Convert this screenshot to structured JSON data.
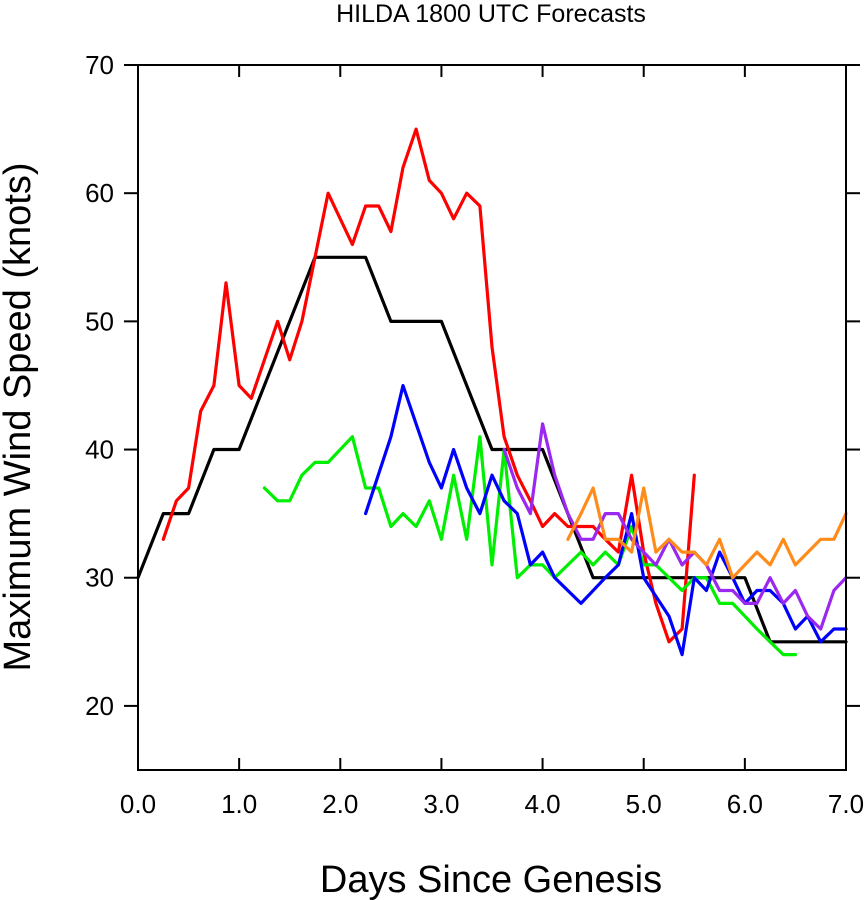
{
  "chart_data": {
    "type": "line",
    "title": "HILDA 1800 UTC Forecasts",
    "xlabel": "Days Since Genesis",
    "ylabel": "Maximum Wind Speed (knots)",
    "xlim": [
      0,
      7
    ],
    "ylim": [
      15,
      70
    ],
    "xticks": [
      0,
      1,
      2,
      3,
      4,
      5,
      6,
      7
    ],
    "xtick_labels": [
      "0.0",
      "1.0",
      "2.0",
      "3.0",
      "4.0",
      "5.0",
      "6.0",
      "7.0"
    ],
    "yticks": [
      20,
      30,
      40,
      50,
      60,
      70
    ],
    "ytick_labels": [
      "20",
      "30",
      "40",
      "50",
      "60",
      "70"
    ],
    "grid": false,
    "series": [
      {
        "color": "#000000",
        "points": [
          [
            0.0,
            30
          ],
          [
            0.25,
            35
          ],
          [
            0.5,
            35
          ],
          [
            0.75,
            40
          ],
          [
            1.0,
            40
          ],
          [
            1.75,
            55
          ],
          [
            2.25,
            55
          ],
          [
            2.5,
            50
          ],
          [
            3.0,
            50
          ],
          [
            3.5,
            40
          ],
          [
            4.0,
            40
          ],
          [
            4.5,
            30
          ],
          [
            6.0,
            30
          ],
          [
            6.25,
            25
          ],
          [
            7.0,
            25
          ]
        ]
      },
      {
        "color": "#ff0000",
        "points": [
          [
            0.25,
            33
          ],
          [
            0.38,
            36
          ],
          [
            0.5,
            37
          ],
          [
            0.62,
            43
          ],
          [
            0.75,
            45
          ],
          [
            0.87,
            53
          ],
          [
            1.0,
            45
          ],
          [
            1.12,
            44
          ],
          [
            1.38,
            50
          ],
          [
            1.5,
            47
          ],
          [
            1.62,
            50
          ],
          [
            1.75,
            55
          ],
          [
            1.88,
            60
          ],
          [
            2.12,
            56
          ],
          [
            2.25,
            59
          ],
          [
            2.38,
            59
          ],
          [
            2.5,
            57
          ],
          [
            2.62,
            62
          ],
          [
            2.75,
            65
          ],
          [
            2.88,
            61
          ],
          [
            3.0,
            60
          ],
          [
            3.12,
            58
          ],
          [
            3.25,
            60
          ],
          [
            3.38,
            59
          ],
          [
            3.5,
            48
          ],
          [
            3.62,
            41
          ],
          [
            3.75,
            38
          ],
          [
            3.88,
            36
          ],
          [
            4.0,
            34
          ],
          [
            4.12,
            35
          ],
          [
            4.25,
            34
          ],
          [
            4.5,
            34
          ],
          [
            4.62,
            33
          ],
          [
            4.75,
            32
          ],
          [
            4.88,
            38
          ],
          [
            5.0,
            32
          ],
          [
            5.12,
            28
          ],
          [
            5.25,
            25
          ],
          [
            5.38,
            26
          ],
          [
            5.5,
            38
          ]
        ]
      },
      {
        "color": "#00ee00",
        "points": [
          [
            1.25,
            37
          ],
          [
            1.38,
            36
          ],
          [
            1.5,
            36
          ],
          [
            1.62,
            38
          ],
          [
            1.75,
            39
          ],
          [
            1.88,
            39
          ],
          [
            2.12,
            41
          ],
          [
            2.25,
            37
          ],
          [
            2.38,
            37
          ],
          [
            2.5,
            34
          ],
          [
            2.62,
            35
          ],
          [
            2.75,
            34
          ],
          [
            2.88,
            36
          ],
          [
            3.0,
            33
          ],
          [
            3.12,
            38
          ],
          [
            3.25,
            33
          ],
          [
            3.38,
            41
          ],
          [
            3.5,
            31
          ],
          [
            3.62,
            40
          ],
          [
            3.75,
            30
          ],
          [
            3.88,
            31
          ],
          [
            4.0,
            31
          ],
          [
            4.12,
            30
          ],
          [
            4.38,
            32
          ],
          [
            4.5,
            31
          ],
          [
            4.62,
            32
          ],
          [
            4.75,
            31
          ],
          [
            4.88,
            34
          ],
          [
            5.0,
            31
          ],
          [
            5.12,
            31
          ],
          [
            5.38,
            29
          ],
          [
            5.5,
            30
          ],
          [
            5.62,
            30
          ],
          [
            5.75,
            28
          ],
          [
            5.88,
            28
          ],
          [
            6.0,
            27
          ],
          [
            6.12,
            26
          ],
          [
            6.25,
            25
          ],
          [
            6.38,
            24
          ],
          [
            6.5,
            24
          ]
        ]
      },
      {
        "color": "#0000ff",
        "points": [
          [
            2.25,
            35
          ],
          [
            2.5,
            41
          ],
          [
            2.62,
            45
          ],
          [
            2.75,
            42
          ],
          [
            2.88,
            39
          ],
          [
            3.0,
            37
          ],
          [
            3.12,
            40
          ],
          [
            3.25,
            37
          ],
          [
            3.38,
            35
          ],
          [
            3.5,
            38
          ],
          [
            3.62,
            36
          ],
          [
            3.75,
            35
          ],
          [
            3.88,
            31
          ],
          [
            4.0,
            32
          ],
          [
            4.12,
            30
          ],
          [
            4.38,
            28
          ],
          [
            4.62,
            30
          ],
          [
            4.75,
            31
          ],
          [
            4.88,
            35
          ],
          [
            5.0,
            30
          ],
          [
            5.25,
            27
          ],
          [
            5.38,
            24
          ],
          [
            5.5,
            30
          ],
          [
            5.62,
            29
          ],
          [
            5.75,
            32
          ],
          [
            5.88,
            30
          ],
          [
            6.0,
            28
          ],
          [
            6.12,
            29
          ],
          [
            6.25,
            29
          ],
          [
            6.38,
            28
          ],
          [
            6.5,
            26
          ],
          [
            6.62,
            27
          ],
          [
            6.75,
            25
          ],
          [
            6.88,
            26
          ],
          [
            7.0,
            26
          ]
        ]
      },
      {
        "color": "#9a28ee",
        "points": [
          [
            3.62,
            40
          ],
          [
            3.75,
            37
          ],
          [
            3.88,
            35
          ],
          [
            4.0,
            42
          ],
          [
            4.12,
            38
          ],
          [
            4.25,
            35
          ],
          [
            4.38,
            33
          ],
          [
            4.5,
            33
          ],
          [
            4.62,
            35
          ],
          [
            4.75,
            35
          ],
          [
            4.88,
            33
          ],
          [
            5.0,
            32
          ],
          [
            5.12,
            31
          ],
          [
            5.25,
            33
          ],
          [
            5.38,
            31
          ],
          [
            5.5,
            32
          ],
          [
            5.62,
            31
          ],
          [
            5.75,
            29
          ],
          [
            5.88,
            29
          ],
          [
            6.0,
            28
          ],
          [
            6.12,
            28
          ],
          [
            6.25,
            30
          ],
          [
            6.38,
            28
          ],
          [
            6.5,
            29
          ],
          [
            6.62,
            27
          ],
          [
            6.75,
            26
          ],
          [
            6.88,
            29
          ],
          [
            7.0,
            30
          ]
        ]
      },
      {
        "color": "#ff8c1a",
        "points": [
          [
            4.25,
            33
          ],
          [
            4.38,
            35
          ],
          [
            4.5,
            37
          ],
          [
            4.62,
            33
          ],
          [
            4.75,
            33
          ],
          [
            4.88,
            32
          ],
          [
            5.0,
            37
          ],
          [
            5.12,
            32
          ],
          [
            5.25,
            33
          ],
          [
            5.38,
            32
          ],
          [
            5.5,
            32
          ],
          [
            5.62,
            31
          ],
          [
            5.75,
            33
          ],
          [
            5.88,
            30
          ],
          [
            6.0,
            31
          ],
          [
            6.12,
            32
          ],
          [
            6.25,
            31
          ],
          [
            6.38,
            33
          ],
          [
            6.5,
            31
          ],
          [
            6.75,
            33
          ],
          [
            6.88,
            33
          ],
          [
            7.0,
            35
          ]
        ]
      }
    ]
  }
}
